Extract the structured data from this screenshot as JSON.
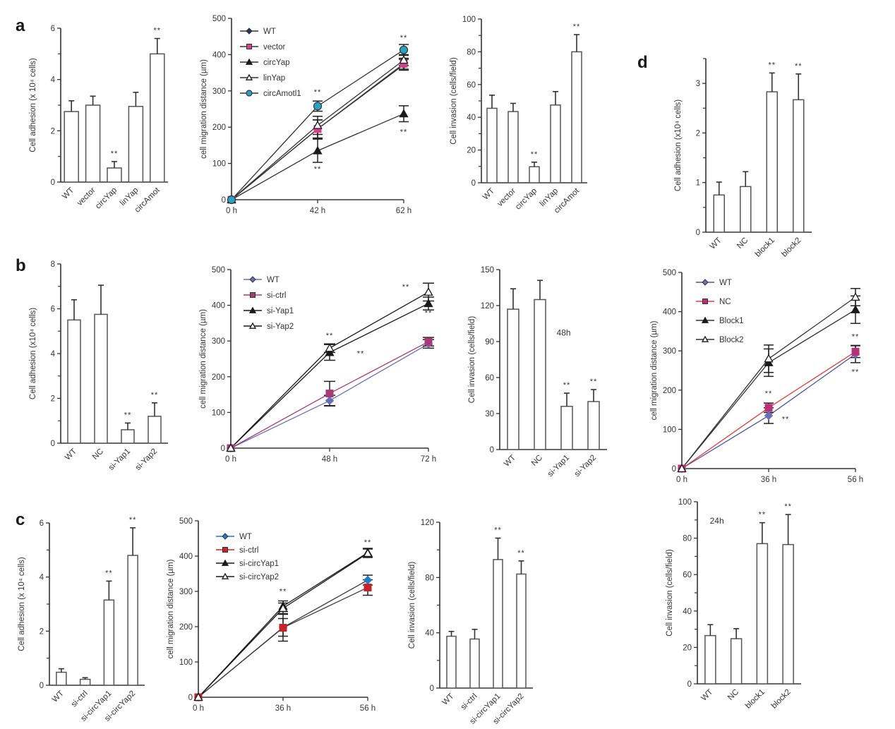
{
  "figure": {
    "panel_letters": [
      "a",
      "b",
      "c",
      "d"
    ]
  },
  "chart_data": [
    {
      "id": "a1",
      "panel": "a",
      "type": "bar",
      "title": "",
      "xlabel": "",
      "ylabel": "Cell adhesion (x 10⁴ cells)",
      "ylim": [
        0,
        6
      ],
      "yticks": [
        0,
        2,
        4,
        6
      ],
      "minor_step": 1,
      "categories": [
        "WT",
        "vector",
        "circYap",
        "linYap",
        "circAmot"
      ],
      "values": [
        2.75,
        3.0,
        0.55,
        2.95,
        5.0
      ],
      "errors": [
        0.42,
        0.35,
        0.25,
        0.55,
        0.6
      ],
      "significance": [
        "",
        "",
        "**",
        "",
        "**"
      ]
    },
    {
      "id": "a2",
      "panel": "a",
      "type": "line",
      "xlabel": "",
      "ylabel": "cell migration distance  (µm)",
      "x": [
        "0 h",
        "42 h",
        "62 h"
      ],
      "ylim": [
        0,
        500
      ],
      "yticks": [
        0,
        100,
        200,
        300,
        400,
        500
      ],
      "legend_position": "top-left",
      "series": [
        {
          "name": "WT",
          "values": [
            0,
            195,
            372
          ],
          "errors": [
            0,
            25,
            15
          ],
          "marker": "diamond",
          "color": "#333333",
          "fill": "#1f3a5f"
        },
        {
          "name": "vector",
          "values": [
            0,
            195,
            375
          ],
          "errors": [
            0,
            25,
            15
          ],
          "marker": "square",
          "color": "#333333",
          "fill": "#d6408f"
        },
        {
          "name": "circYap",
          "values": [
            0,
            135,
            237
          ],
          "errors": [
            0,
            32,
            22
          ],
          "marker": "triangle",
          "color": "#333333",
          "fill": "#1a1a1a"
        },
        {
          "name": "linYap",
          "values": [
            0,
            205,
            385
          ],
          "errors": [
            0,
            25,
            15
          ],
          "marker": "triangle-open",
          "color": "#333333",
          "fill": "#ffffff"
        },
        {
          "name": "circAmotl1",
          "values": [
            0,
            258,
            413
          ],
          "errors": [
            0,
            14,
            15
          ],
          "marker": "circle",
          "color": "#333333",
          "fill": "#29a3c4"
        }
      ],
      "annotations": [
        {
          "x": "42 h",
          "y": 290,
          "text": "**"
        },
        {
          "x": "42 h",
          "y": 78,
          "text": "**"
        },
        {
          "x": "62 h",
          "y": 440,
          "text": "**"
        },
        {
          "x": "62 h",
          "y": 180,
          "text": "**"
        }
      ]
    },
    {
      "id": "a3",
      "panel": "a",
      "type": "bar",
      "xlabel": "",
      "ylabel": "Cell invasion (cells/field)",
      "ylim": [
        0,
        100
      ],
      "yticks": [
        0,
        20,
        40,
        60,
        80,
        100
      ],
      "minor_step": 10,
      "categories": [
        "WT",
        "vector",
        "circYap",
        "linYap",
        "circAmot"
      ],
      "values": [
        45.5,
        43.5,
        9.8,
        47.5,
        80
      ],
      "errors": [
        8,
        5,
        2.8,
        8.2,
        10.5
      ],
      "significance": [
        "",
        "",
        "**",
        "",
        "**"
      ]
    },
    {
      "id": "b1",
      "panel": "b",
      "type": "bar",
      "xlabel": "",
      "ylabel": "Cell adhesion (x10⁴ cells)",
      "ylim": [
        0,
        8
      ],
      "yticks": [
        0,
        2,
        4,
        6,
        8
      ],
      "minor_step": 1,
      "categories": [
        "WT",
        "NC",
        "si-Yap1",
        "si-Yap2"
      ],
      "values": [
        5.5,
        5.75,
        0.6,
        1.2
      ],
      "errors": [
        0.9,
        1.3,
        0.3,
        0.6
      ],
      "significance": [
        "",
        "",
        "**",
        "**"
      ]
    },
    {
      "id": "b2",
      "panel": "b",
      "type": "line",
      "xlabel": "",
      "ylabel": "cell migration distance  (µm)",
      "x": [
        "0 h",
        "48 h",
        "72 h"
      ],
      "ylim": [
        0,
        500
      ],
      "yticks": [
        0,
        100,
        200,
        300,
        400,
        500
      ],
      "legend_position": "top-left",
      "series": [
        {
          "name": "WT",
          "values": [
            0,
            133,
            292
          ],
          "errors": [
            0,
            15,
            12
          ],
          "marker": "diamond",
          "color": "#6b6fb5",
          "fill": "#6b6fb5"
        },
        {
          "name": "si-ctrl",
          "values": [
            0,
            153,
            298
          ],
          "errors": [
            0,
            34,
            12
          ],
          "marker": "square",
          "color": "#a83a78",
          "fill": "#a83a78"
        },
        {
          "name": "si-Yap1",
          "values": [
            0,
            268,
            405
          ],
          "errors": [
            0,
            22,
            18
          ],
          "marker": "triangle",
          "color": "#1a1a1a",
          "fill": "#1a1a1a"
        },
        {
          "name": "si-Yap2",
          "values": [
            0,
            280,
            437
          ],
          "errors": [
            0,
            12,
            25
          ],
          "marker": "triangle-open",
          "color": "#1a1a1a",
          "fill": "#ffffff"
        }
      ],
      "annotations": [
        {
          "x": "48 h",
          "y": 308,
          "text": "**"
        },
        {
          "x": "48 h",
          "y": 258,
          "text": "**",
          "dx": 44
        },
        {
          "x": "72 h",
          "y": 445,
          "text": "**",
          "dx": -32
        },
        {
          "x": "72 h",
          "y": 372,
          "text": "**"
        }
      ]
    },
    {
      "id": "b3",
      "panel": "b",
      "type": "bar",
      "xlabel": "",
      "ylabel": "Cell invasion (cells/field)",
      "ylim": [
        0,
        150
      ],
      "yticks": [
        0,
        30,
        60,
        90,
        120,
        150
      ],
      "minor_step": 30,
      "categories": [
        "WT",
        "NC",
        "si-Yap1",
        "si-Yap2"
      ],
      "values": [
        117,
        125,
        36,
        40
      ],
      "errors": [
        17,
        16,
        11,
        10
      ],
      "significance": [
        "",
        "",
        "**",
        "**"
      ],
      "annotations": [
        {
          "text": "48h",
          "xfrac": 0.53,
          "y": 95
        }
      ]
    },
    {
      "id": "c1",
      "panel": "c",
      "type": "bar",
      "xlabel": "",
      "ylabel": "Cell adhesion (x 10⁴ cells)",
      "ylim": [
        0,
        6
      ],
      "yticks": [
        0,
        2,
        4,
        6
      ],
      "minor_step": 1,
      "categories": [
        "WT",
        "si-ctrl",
        "si-circYap1",
        "si-circYap2"
      ],
      "values": [
        0.48,
        0.22,
        3.15,
        4.8
      ],
      "errors": [
        0.13,
        0.06,
        0.7,
        1.02
      ],
      "significance": [
        "",
        "",
        "**",
        "**"
      ]
    },
    {
      "id": "c2",
      "panel": "c",
      "type": "line",
      "xlabel": "",
      "ylabel": "cell migration distance  (µm)",
      "x": [
        "0 h",
        "36 h",
        "56 h"
      ],
      "ylim": [
        0,
        500
      ],
      "yticks": [
        0,
        100,
        200,
        300,
        400,
        500
      ],
      "legend_position": "top-left",
      "series": [
        {
          "name": "WT",
          "values": [
            0,
            198,
            332
          ],
          "errors": [
            0,
            25,
            14
          ],
          "marker": "diamond",
          "color": "#3a3a3a",
          "fill": "#1f7ac8",
          "legend_color": "#1f7ac8"
        },
        {
          "name": "si-ctrl",
          "values": [
            0,
            197,
            311
          ],
          "errors": [
            0,
            38,
            22
          ],
          "marker": "square",
          "color": "#3a3a3a",
          "fill": "#c8222a",
          "legend_color": "#c8222a"
        },
        {
          "name": "si-circYap1",
          "values": [
            0,
            258,
            410
          ],
          "errors": [
            0,
            15,
            12
          ],
          "marker": "triangle",
          "color": "#1a1a1a",
          "fill": "#1a1a1a"
        },
        {
          "name": "si-circYap2",
          "values": [
            0,
            252,
            408
          ],
          "errors": [
            0,
            15,
            12
          ],
          "marker": "triangle-open",
          "color": "#1a1a1a",
          "fill": "#ffffff"
        }
      ],
      "annotations": [
        {
          "x": "36 h",
          "y": 293,
          "text": "**"
        },
        {
          "x": "56 h",
          "y": 432,
          "text": "**"
        }
      ]
    },
    {
      "id": "c3",
      "panel": "c",
      "type": "bar",
      "xlabel": "",
      "ylabel": "Cell invasion (cells/field)",
      "ylim": [
        0,
        120
      ],
      "yticks": [
        0,
        40,
        80,
        120
      ],
      "minor_step": 20,
      "categories": [
        "WT",
        "si-ctrl",
        "si-circYap1",
        "si-circYap2"
      ],
      "values": [
        37.5,
        35.5,
        93,
        82.5
      ],
      "errors": [
        3.5,
        7,
        15.5,
        9.5
      ],
      "significance": [
        "",
        "",
        "**",
        "**"
      ]
    },
    {
      "id": "d1",
      "panel": "d",
      "type": "bar",
      "xlabel": "",
      "ylabel": "Cell adhesion  (x10⁴ cells)",
      "ylim": [
        0,
        3.5
      ],
      "yticks": [
        0,
        1,
        2,
        3
      ],
      "minor_step": 0.5,
      "categories": [
        "WT",
        "NC",
        "block1",
        "block2"
      ],
      "values": [
        0.75,
        0.92,
        2.83,
        2.67
      ],
      "errors": [
        0.26,
        0.3,
        0.38,
        0.52
      ],
      "significance": [
        "",
        "",
        "**",
        "**"
      ]
    },
    {
      "id": "d2",
      "panel": "d",
      "type": "line",
      "xlabel": "",
      "ylabel": "cell migration distance  (µm)",
      "x": [
        "0 h",
        "36 h",
        "56 h"
      ],
      "ylim": [
        0,
        500
      ],
      "yticks": [
        0,
        100,
        200,
        300,
        400,
        500
      ],
      "legend_position": "top-left",
      "series": [
        {
          "name": "WT",
          "values": [
            0,
            135,
            292
          ],
          "errors": [
            0,
            20,
            22
          ],
          "marker": "diamond",
          "color": "#4a55a8",
          "fill": "#6b6fb5"
        },
        {
          "name": "NC",
          "values": [
            0,
            155,
            298
          ],
          "errors": [
            0,
            12,
            15
          ],
          "marker": "square",
          "color": "#e83a3a",
          "fill": "#b8307a"
        },
        {
          "name": "Block1",
          "values": [
            0,
            270,
            405
          ],
          "errors": [
            0,
            35,
            35
          ],
          "marker": "triangle",
          "color": "#333333",
          "fill": "#1a1a1a"
        },
        {
          "name": "Block2",
          "values": [
            0,
            280,
            437
          ],
          "errors": [
            0,
            35,
            22
          ],
          "marker": "triangle-open",
          "color": "#333333",
          "fill": "#ffffff"
        }
      ],
      "annotations": [
        {
          "x": "36 h",
          "y": 185,
          "text": "**"
        },
        {
          "x": "36 h",
          "y": 120,
          "text": "**",
          "dx": 24
        },
        {
          "x": "56 h",
          "y": 330,
          "text": "**"
        },
        {
          "x": "56 h",
          "y": 240,
          "text": "**"
        }
      ]
    },
    {
      "id": "d3",
      "panel": "d",
      "type": "bar",
      "xlabel": "",
      "ylabel": "Cell invasion (cells/field)",
      "ylim": [
        0,
        100
      ],
      "yticks": [
        0,
        20,
        40,
        60,
        80,
        100
      ],
      "minor_step": 10,
      "categories": [
        "WT",
        "NC",
        "block1",
        "block2"
      ],
      "values": [
        26.5,
        24.8,
        77,
        76.5
      ],
      "errors": [
        6,
        5.5,
        11.5,
        16.5
      ],
      "significance": [
        "",
        "",
        "**",
        "**"
      ],
      "annotations": [
        {
          "text": "24h",
          "xfrac": 0.12,
          "y": 88
        }
      ]
    }
  ]
}
